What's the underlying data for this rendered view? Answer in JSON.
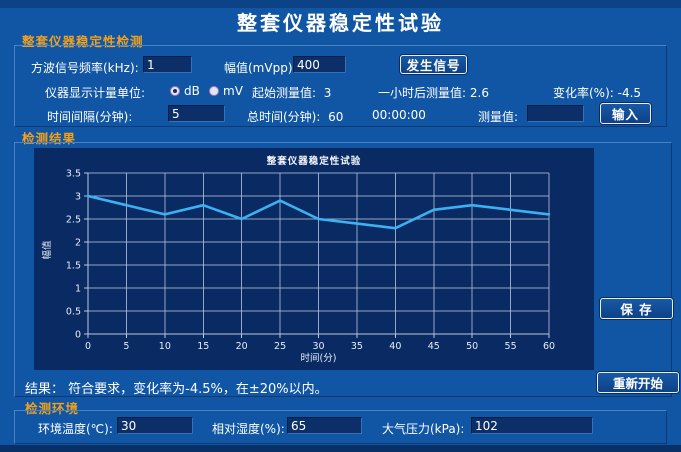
{
  "window": {
    "title": "整套仪器稳定性试验"
  },
  "panel_detect": {
    "label": "整套仪器稳定性检测",
    "freq_label": "方波信号频率(kHz):",
    "freq_value": "1",
    "amp_label": "幅值(mVpp):",
    "amp_value": "400",
    "generate_button": "发生信号",
    "unit_label": "仪器显示计量单位:",
    "unit_options": [
      "dB",
      "mV"
    ],
    "unit_selected": "dB",
    "initial_label": "起始测量值:",
    "initial_value": "3",
    "after_label": "一小时后测量值:",
    "after_value": "2.6",
    "rate_label": "变化率(%):",
    "rate_value": "-4.5",
    "interval_label": "时间间隔(分钟):",
    "interval_value": "5",
    "total_label": "总时间(分钟):",
    "total_value": "60",
    "timer": "00:00:00",
    "measure_label": "测量值:",
    "measure_value": "",
    "input_button": "输入"
  },
  "panel_result": {
    "label": "检测结果",
    "result_text": "结果：  符合要求，变化率为-4.5%，在±20%以内。",
    "save_button": "保 存",
    "restart_button": "重新开始"
  },
  "chart_data": {
    "type": "line",
    "title": "整套仪器稳定性试验",
    "xlabel": "时间(分)",
    "ylabel": "幅值",
    "x": [
      0,
      5,
      10,
      15,
      20,
      25,
      30,
      35,
      40,
      45,
      50,
      55,
      60
    ],
    "values": [
      3.0,
      2.8,
      2.6,
      2.8,
      2.5,
      2.9,
      2.5,
      2.4,
      2.3,
      2.7,
      2.8,
      2.7,
      2.6
    ],
    "xlim": [
      0,
      60
    ],
    "ylim": [
      0,
      3.5
    ],
    "xtick": 5,
    "ytick": 0.5,
    "grid": true,
    "legend": "none",
    "line_color": "#3cb0f0",
    "grid_color": "#b9cade",
    "tick_text_color": "#e6edf8"
  },
  "panel_env": {
    "label": "检测环境",
    "temp_label": "环境温度(℃):",
    "temp_value": "30",
    "humidity_label": "相对湿度(%):",
    "humidity_value": "65",
    "pressure_label": "大气压力(kPa):",
    "pressure_value": "102"
  },
  "colors": {
    "background": "#1156a4",
    "chart_background": "#0a2a63",
    "accent_orange": "#f0a01c",
    "line_blue": "#3cb0f0"
  }
}
